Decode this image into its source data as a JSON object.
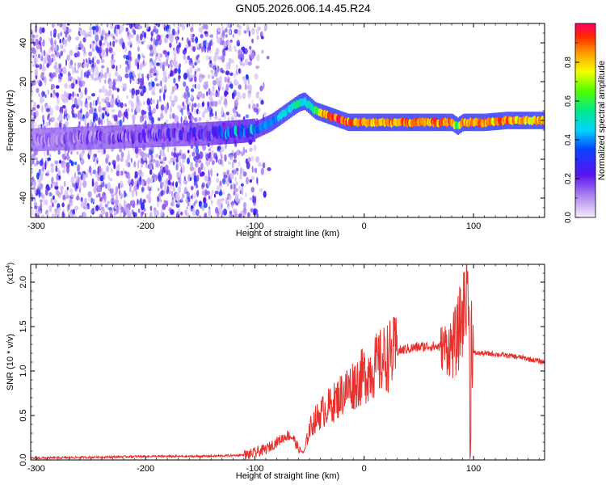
{
  "title": "GN05.2026.006.14.45.R24",
  "colors": {
    "line": "#e8302c",
    "axis": "#000000",
    "background": "#ffffff"
  },
  "chart_data": [
    {
      "type": "heatmap",
      "xlabel": "Height of straight line (km)",
      "ylabel": "Frequency (Hz)",
      "xlim": [
        -305,
        165
      ],
      "ylim": [
        -50,
        50
      ],
      "xticks": [
        -300,
        -200,
        -100,
        0,
        100
      ],
      "yticks": [
        -40,
        -20,
        0,
        20,
        40
      ],
      "colorbar": {
        "label": "Normalized spectral amplitude",
        "range": [
          0,
          1
        ],
        "ticks": [
          "0.0",
          "0.2",
          "0.4",
          "0.6",
          "0.8"
        ],
        "colormap": "rainbow (violet to red)"
      },
      "ridge": {
        "x": [
          -305,
          -250,
          -200,
          -150,
          -120,
          -100,
          -85,
          -70,
          -60,
          -55,
          -45,
          -35,
          -25,
          -15,
          -5,
          0,
          20,
          50,
          70,
          80,
          85,
          90,
          95,
          110,
          130,
          165
        ],
        "frequency": [
          -10,
          -9,
          -8,
          -7,
          -6,
          -5,
          -1,
          5,
          9,
          10,
          5,
          3,
          1,
          -1,
          -1,
          -1,
          -1,
          -1,
          -1,
          -1,
          -3,
          -1,
          -1,
          -1,
          0,
          0
        ],
        "peak_amplitude": [
          0.1,
          0.12,
          0.15,
          0.18,
          0.3,
          0.35,
          0.42,
          0.48,
          0.55,
          0.45,
          0.6,
          0.9,
          0.95,
          0.9,
          0.9,
          0.85,
          0.85,
          0.85,
          0.9,
          0.9,
          0.6,
          0.9,
          0.85,
          0.85,
          0.85,
          0.8
        ]
      },
      "noise_region_x": [
        -305,
        -115
      ]
    },
    {
      "type": "line",
      "xlabel": "Height of straight line (km)",
      "ylabel": "SNR (10 * v/v)",
      "exponent_label": "(x10",
      "exponent_power": "4",
      "exponent_close": ")",
      "xlim": [
        -305,
        165
      ],
      "ylim": [
        0.0,
        2.2
      ],
      "xticks": [
        -300,
        -200,
        -100,
        0,
        100
      ],
      "yticks": [
        0.0,
        0.5,
        1.0,
        1.5,
        2.0
      ],
      "ytick_labels": [
        "0.0",
        "0.5",
        "1.0",
        "1.5",
        "2.0"
      ],
      "series": [
        {
          "x": [
            -305,
            -250,
            -200,
            -150,
            -120,
            -105,
            -100,
            -90,
            -80,
            -70,
            -65,
            -60,
            -55,
            -50,
            -45,
            -40,
            -35,
            -30,
            -25,
            -20,
            -15,
            -10,
            -5,
            0,
            10,
            20,
            30,
            40,
            50,
            60,
            70,
            80,
            85,
            88,
            90,
            92,
            94,
            95,
            96,
            97,
            98,
            100,
            105,
            120,
            140,
            165
          ],
          "y": [
            0.02,
            0.03,
            0.04,
            0.04,
            0.05,
            0.06,
            0.08,
            0.12,
            0.2,
            0.28,
            0.25,
            0.12,
            0.08,
            0.35,
            0.45,
            0.52,
            0.58,
            0.62,
            0.68,
            0.75,
            0.8,
            0.85,
            0.9,
            0.95,
            1.05,
            1.15,
            1.22,
            1.25,
            1.27,
            1.28,
            1.27,
            1.27,
            1.35,
            1.55,
            1.6,
            1.8,
            2.0,
            2.15,
            1.2,
            0.15,
            1.5,
            1.2,
            1.2,
            1.19,
            1.16,
            1.1
          ]
        }
      ]
    }
  ]
}
